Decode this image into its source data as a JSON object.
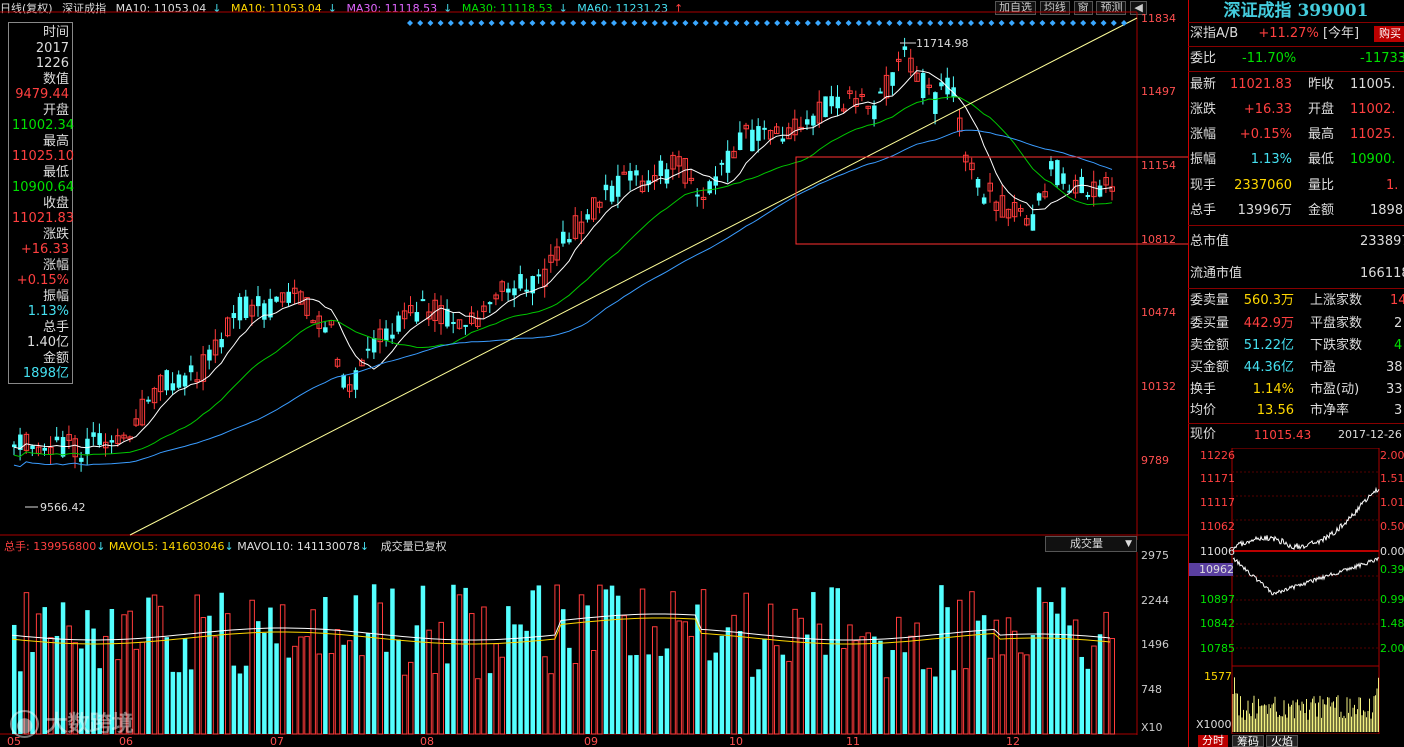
{
  "topbar": {
    "mode": "日线(复权)",
    "index_name": "深证成指",
    "ma10_a": "MA10: 11053.04",
    "ma10_b": "MA10: 11053.04",
    "ma30_a": "MA30: 11118.53",
    "ma30_b": "MA30: 11118.53",
    "ma60": "MA60: 11231.23",
    "arrow_down": "↓",
    "arrow_up": "↑",
    "btn_add": "加自选",
    "btn_line": "均线",
    "btn_window": "窗",
    "btn_forecast": "预测",
    "btn_nav": "◀"
  },
  "infobox": {
    "time_label": "时间",
    "year": "2017",
    "date": "1226",
    "value_label": "数值",
    "value": "9479.44",
    "open_label": "开盘",
    "open": "11002.34",
    "high_label": "最高",
    "high": "11025.10",
    "low_label": "最低",
    "low": "10900.64",
    "close_label": "收盘",
    "close": "11021.83",
    "change_label": "涨跌",
    "change": "+16.33",
    "pct_label": "涨幅",
    "pct": "+0.15%",
    "amp_label": "振幅",
    "amp": "1.13%",
    "vol_label": "总手",
    "vol": "1.40亿",
    "amt_label": "金额",
    "amt": "1898亿"
  },
  "chart_labels": {
    "peak": "11714.98",
    "trough": "9566.42",
    "price_axis": [
      "11834",
      "11497",
      "11154",
      "10812",
      "10474",
      "10132",
      "9789"
    ],
    "vol_axis": [
      "2975",
      "2244",
      "1496",
      "748"
    ],
    "vol_unit": "X10",
    "months": [
      "05",
      "06",
      "07",
      "08",
      "09",
      "10",
      "11",
      "12"
    ]
  },
  "volume_header": {
    "total": "总手: 139956800",
    "mavol5": "MAVOL5: 141603046",
    "mavol10": "MAVOL10: 141130078",
    "note": "成交量已复权",
    "selector": "成交量",
    "selector_arrow": "▼"
  },
  "right_panel": {
    "title": "深证成指 399001",
    "ab_label": "深指A/B",
    "ab_value": "+11.27%",
    "ab_period": "[今年]",
    "buy_btn": "购买",
    "weibi_label": "委比",
    "weibi_value": "-11.70%",
    "weibi_value2": "-11733",
    "latest_label": "最新",
    "latest_value": "11021.83",
    "prev_label": "昨收",
    "prev_value": "11005.",
    "chg_label": "涨跌",
    "chg_value": "+16.33",
    "open_label": "开盘",
    "open_value": "11002.",
    "pct_label": "涨幅",
    "pct_value": "+0.15%",
    "high_label": "最高",
    "high_value": "11025.",
    "amp_label": "振幅",
    "amp_value": "1.13%",
    "low_label": "最低",
    "low_value": "10900.",
    "cur_label": "现手",
    "cur_value": "2337060",
    "ratio_label": "量比",
    "ratio_value": "1.",
    "tot_label": "总手",
    "tot_value": "13996万",
    "amt_label": "金额",
    "amt_value": "1898",
    "mcap_label": "总市值",
    "mcap_value": "233897",
    "fcap_label": "流通市值",
    "fcap_value": "166118",
    "sellvol_label": "委卖量",
    "sellvol_value": "560.3万",
    "up_label": "上涨家数",
    "up_value": "14",
    "buyvol_label": "委买量",
    "buyvol_value": "442.9万",
    "flat_label": "平盘家数",
    "flat_value": "2",
    "sellamt_label": "卖金额",
    "sellamt_value": "51.22亿",
    "down_label": "下跌家数",
    "down_value": "4",
    "buyamt_label": "买金额",
    "buyamt_value": "44.36亿",
    "pe_label": "市盈",
    "pe_value": "38",
    "turn_label": "换手",
    "turn_value": "1.14%",
    "ped_label": "市盈(动)",
    "ped_value": "33",
    "avg_label": "均价",
    "avg_value": "13.56",
    "pb_label": "市净率",
    "pb_value": "3",
    "now_label": "现价",
    "now_value": "11015.43",
    "now_date": "2017-12-26",
    "intraday_left": [
      "11226",
      "11171",
      "11117",
      "11062",
      "11006",
      "10962",
      "10897",
      "10842",
      "10785"
    ],
    "intraday_right": [
      "2.00",
      "1.51",
      "1.01",
      "0.50",
      "0.00",
      "0.39",
      "0.99",
      "1.48",
      "2.00"
    ],
    "intraday_vol": [
      "1577",
      "X1000"
    ],
    "tabs": [
      "分时",
      "筹码",
      "火焰"
    ]
  },
  "watermark": "大数跨境",
  "colors": {
    "up": "#ff3b3b",
    "down": "#54ffff",
    "ma10": "#ffffff",
    "ma30": "#00c800",
    "ma60": "#3a9cff",
    "trend": "#ffff99"
  }
}
